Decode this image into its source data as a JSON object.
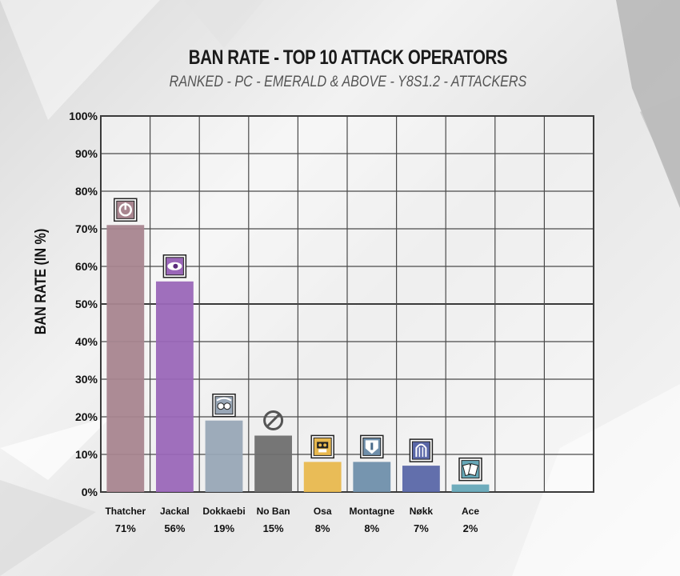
{
  "chart_data": {
    "type": "bar",
    "title": "BAN RATE - TOP 10 ATTACK OPERATORS",
    "subtitle": "RANKED - PC - EMERALD & ABOVE - Y8S1.2 - ATTACKERS",
    "ylabel": "BAN RATE (IN %)",
    "xlabel": "",
    "ylim": [
      0,
      100
    ],
    "yticks": [
      "0%",
      "10%",
      "20%",
      "30%",
      "40%",
      "50%",
      "60%",
      "70%",
      "80%",
      "90%",
      "100%"
    ],
    "grid": true,
    "categories": [
      "Thatcher",
      "Jackal",
      "Dokkaebi",
      "No Ban",
      "Osa",
      "Montagne",
      "Nøkk",
      "Ace"
    ],
    "values": [
      71,
      56,
      19,
      15,
      8,
      8,
      7,
      2
    ],
    "value_labels": [
      "71%",
      "56%",
      "19%",
      "15%",
      "8%",
      "8%",
      "7%",
      "2%"
    ],
    "colors": [
      "#a8858f",
      "#9a67b8",
      "#98a6b6",
      "#6f6f6f",
      "#e8b84e",
      "#6f8fab",
      "#5a67a8",
      "#66a8b8"
    ],
    "icons": [
      "thatcher-icon",
      "jackal-icon",
      "dokkaebi-icon",
      "no-ban-icon",
      "osa-icon",
      "montagne-icon",
      "nokk-icon",
      "ace-icon"
    ],
    "grid_slots": 10
  }
}
